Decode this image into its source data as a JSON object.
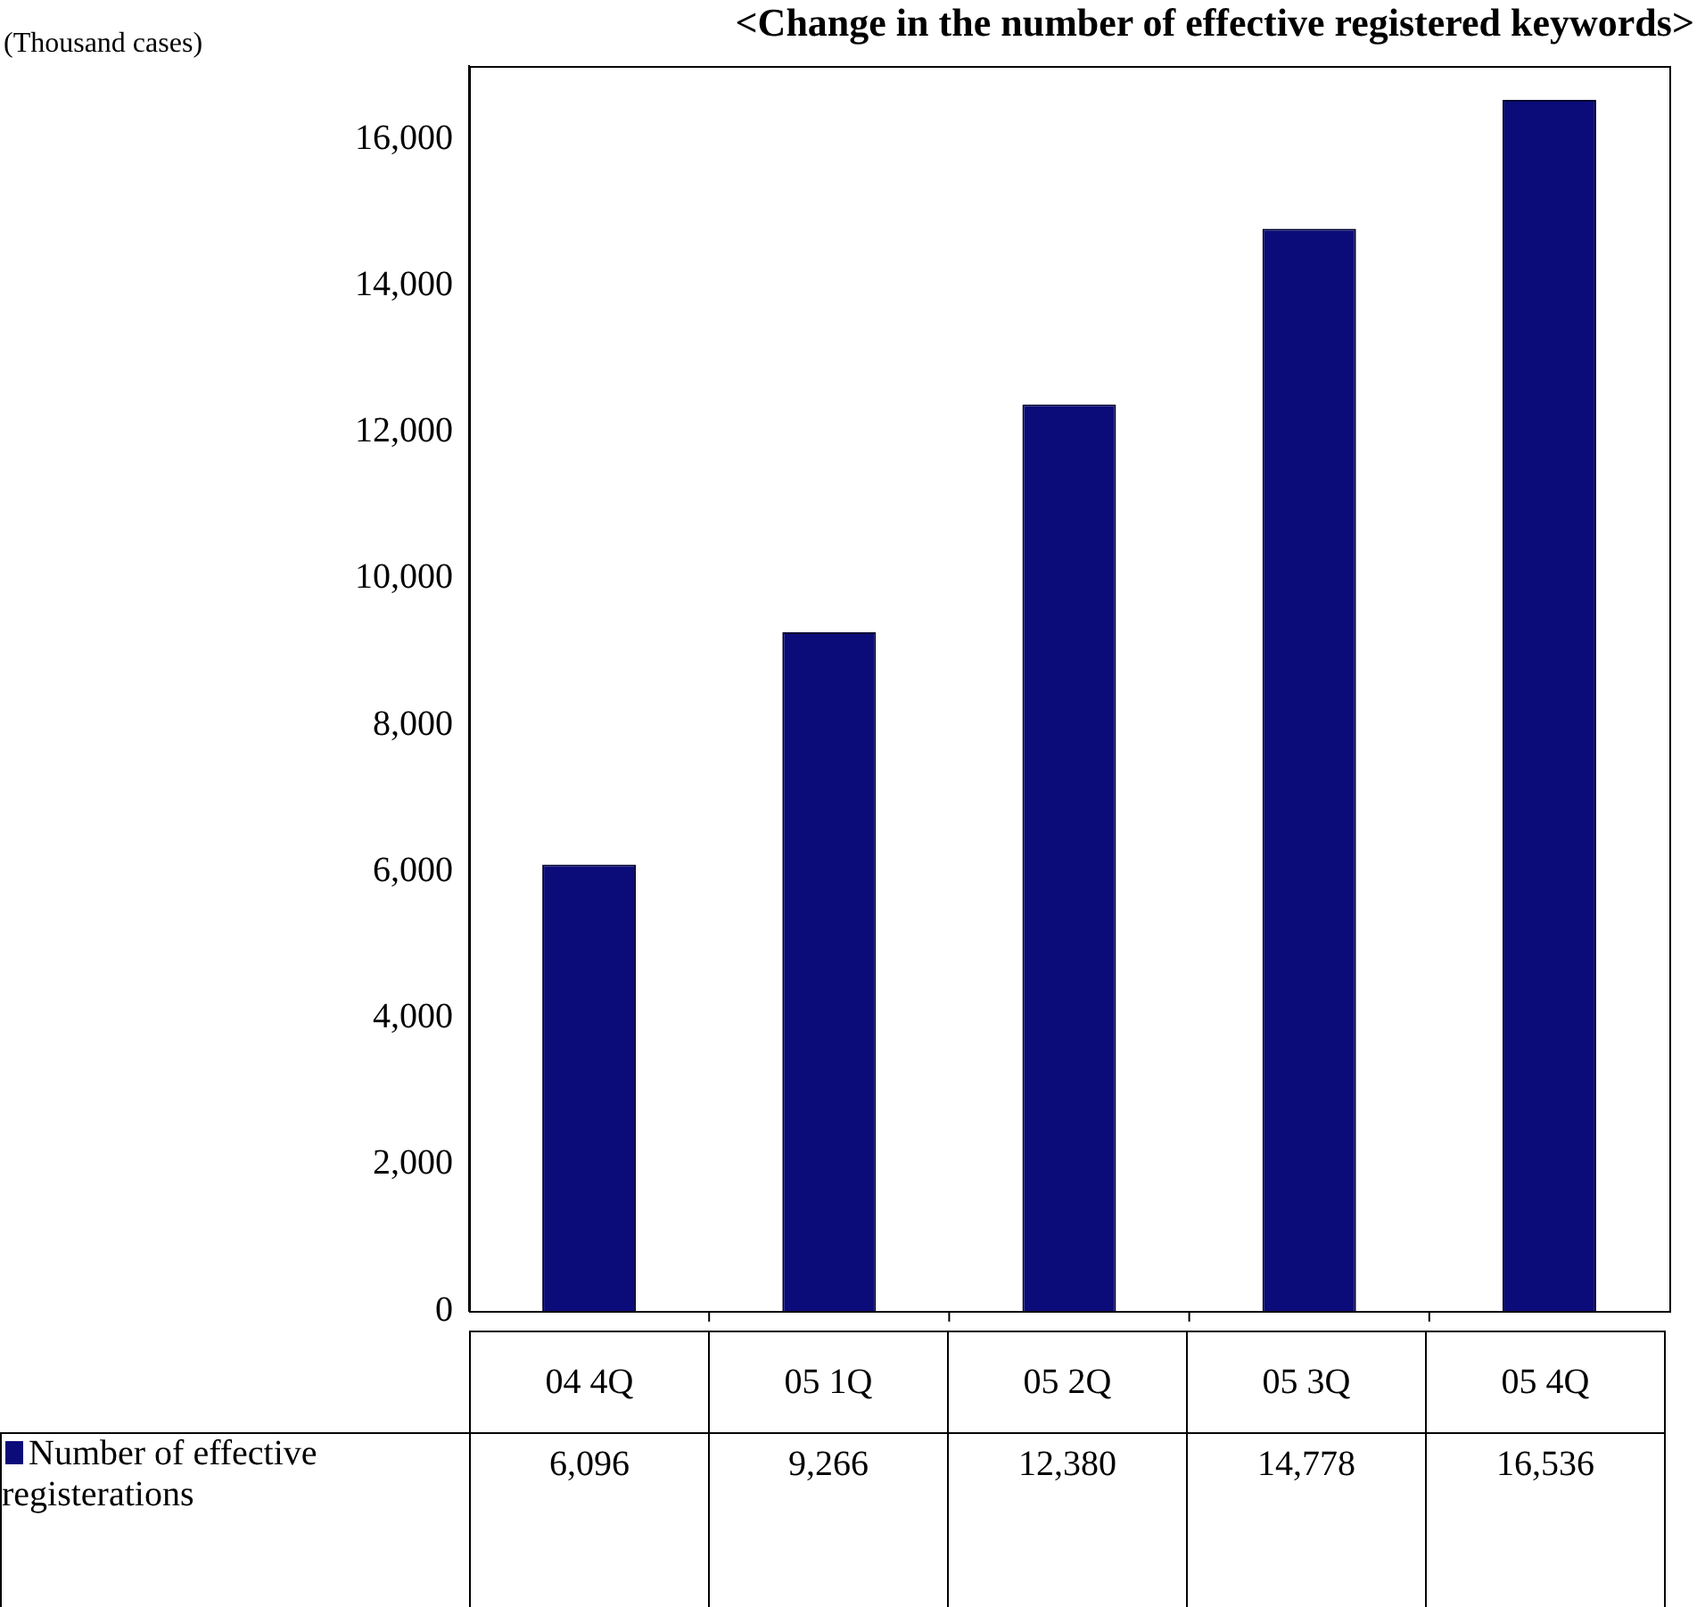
{
  "chart_data": {
    "type": "bar",
    "title": "<Change in the number of effective registered keywords>",
    "annotations": [
      "(Thousand cases)"
    ],
    "categories": [
      "04 4Q",
      "05 1Q",
      "05 2Q",
      "05 3Q",
      "05 4Q"
    ],
    "series": [
      {
        "name": "Number of effective registerations",
        "color": "#0b0b7a",
        "values": [
          6096,
          9266,
          12380,
          14778,
          16536
        ],
        "value_labels": [
          "6,096",
          "9,266",
          "12,380",
          "14,778",
          "16,536"
        ]
      }
    ],
    "ylim": [
      0,
      17000
    ],
    "yticks": [
      0,
      {
        "value": 2000,
        "label": "2,000"
      },
      {
        "value": 4000,
        "label": "4,000"
      },
      {
        "value": 6000,
        "label": "6,000"
      },
      {
        "value": 8000,
        "label": "8,000"
      },
      {
        "value": 10000,
        "label": "10,000"
      },
      {
        "value": 12000,
        "label": "12,000"
      },
      {
        "value": 14000,
        "label": "14,000"
      },
      {
        "value": 16000,
        "label": "16,000"
      }
    ],
    "grid": false,
    "legend": "bottom left"
  }
}
